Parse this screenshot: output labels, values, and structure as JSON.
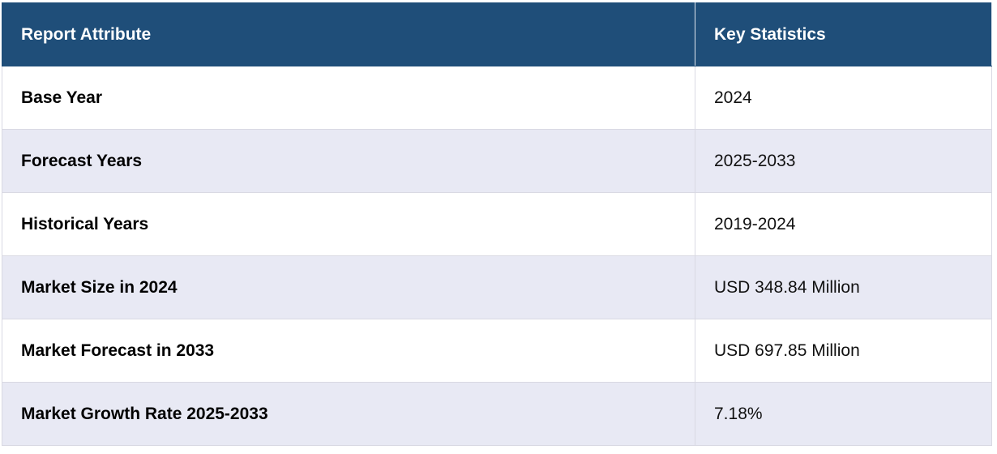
{
  "table": {
    "header": [
      "Report Attribute",
      "Key Statistics"
    ],
    "rows": [
      [
        "Base Year",
        "2024"
      ],
      [
        "Forecast Years",
        "2025-2033"
      ],
      [
        "Historical Years",
        "2019-2024"
      ],
      [
        "Market Size in 2024",
        "USD 348.84 Million"
      ],
      [
        "Market Forecast in 2033",
        "USD 697.85 Million"
      ],
      [
        "Market Growth Rate 2025-2033",
        "7.18%"
      ]
    ]
  }
}
